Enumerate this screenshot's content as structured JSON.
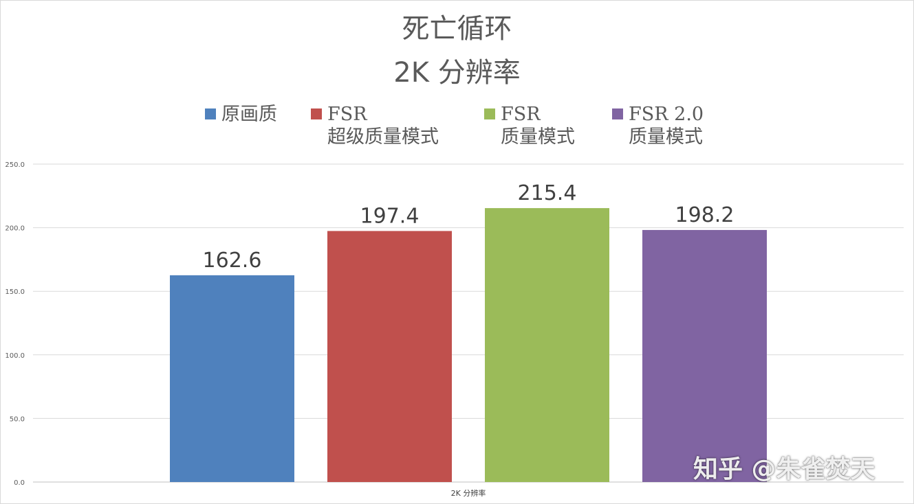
{
  "chart_data": {
    "type": "bar",
    "title_line1": "死亡循环",
    "title_line2": "2K 分辨率",
    "categories": [
      "2K 分辨率"
    ],
    "series": [
      {
        "name_line1": "原画质",
        "name_line2": "",
        "color": "#4f81bd",
        "values": [
          162.6
        ],
        "label": "162.6"
      },
      {
        "name_line1": "FSR",
        "name_line2": "超级质量模式",
        "color": "#c0504d",
        "values": [
          197.4
        ],
        "label": "197.4"
      },
      {
        "name_line1": "FSR",
        "name_line2": "质量模式",
        "color": "#9bbb59",
        "values": [
          215.4
        ],
        "label": "215.4"
      },
      {
        "name_line1": "FSR 2.0",
        "name_line2": "质量模式",
        "color": "#8064a2",
        "values": [
          198.2
        ],
        "label": "198.2"
      }
    ],
    "yticks": [
      "0.0",
      "50.0",
      "100.0",
      "150.0",
      "200.0",
      "250.0"
    ],
    "ylim": [
      0,
      250
    ],
    "grid": true,
    "legend_position": "top"
  },
  "watermark": "知乎 @朱雀焚天"
}
